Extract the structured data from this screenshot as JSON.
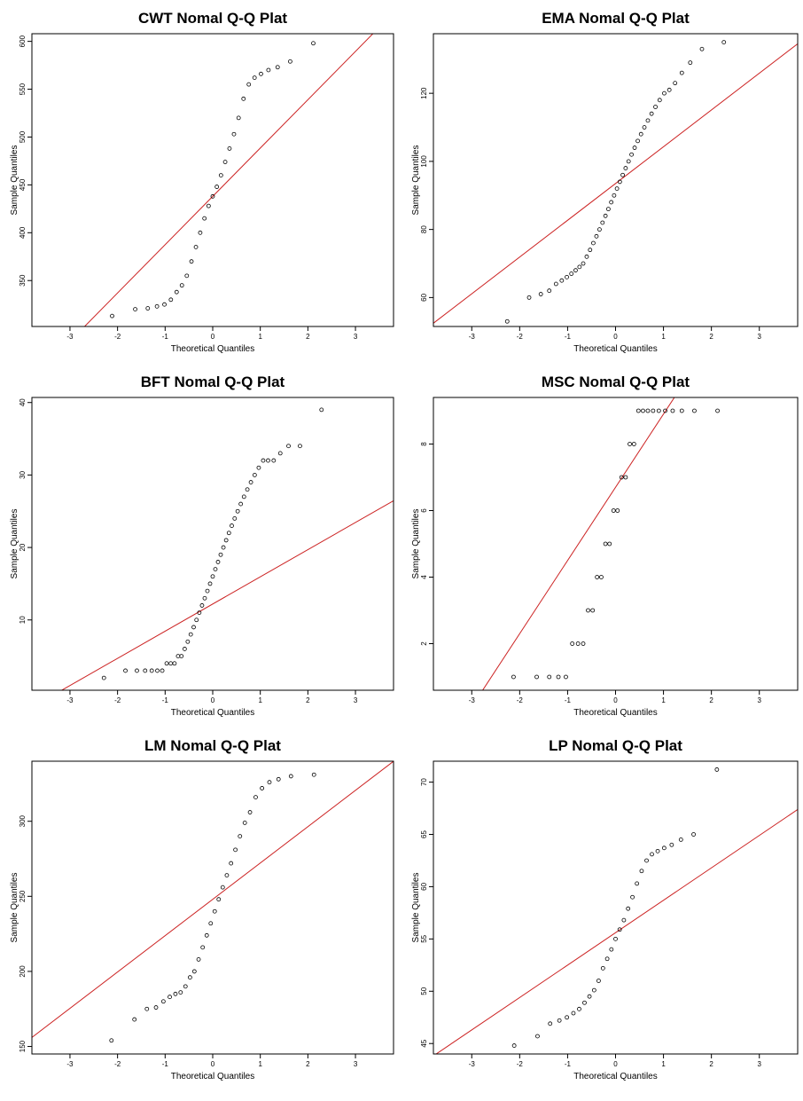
{
  "figure": {
    "axis_xlabel": "Theoretical Quantiles",
    "axis_ylabel": "Sample Quantiles",
    "point_color": "#000000",
    "line_color": "#cc2222",
    "frame_color": "#000000"
  },
  "chart_data": [
    {
      "type": "scatter",
      "title": "CWT Nomal Q-Q Plat",
      "xlabel": "Theoretical Quantiles",
      "ylabel": "Sample Quantiles",
      "xlim": [
        -3.8,
        3.8
      ],
      "ylim": [
        302,
        608
      ],
      "xticks": [
        -3,
        -2,
        -1,
        0,
        1,
        2,
        3
      ],
      "yticks": [
        350,
        400,
        450,
        500,
        550,
        600
      ],
      "grid": false,
      "reference_line": {
        "slope": 50.5,
        "intercept": 438
      },
      "samples": [
        313,
        320,
        321,
        323,
        325,
        330,
        338,
        345,
        355,
        370,
        385,
        400,
        415,
        428,
        438,
        448,
        460,
        474,
        488,
        503,
        520,
        540,
        555,
        562,
        566,
        570,
        573,
        579,
        598
      ]
    },
    {
      "type": "scatter",
      "title": "EMA Nomal Q-Q Plat",
      "xlabel": "Theoretical Quantiles",
      "ylabel": "Sample Quantiles",
      "xlim": [
        -3.8,
        3.8
      ],
      "ylim": [
        51.5,
        137.5
      ],
      "xticks": [
        -3,
        -2,
        -1,
        0,
        1,
        2,
        3
      ],
      "yticks": [
        60,
        80,
        100,
        120
      ],
      "grid": false,
      "reference_line": {
        "slope": 10.8,
        "intercept": 93.5
      },
      "samples": [
        53,
        60,
        61,
        62,
        64,
        65,
        66,
        67,
        68,
        69,
        70,
        72,
        74,
        76,
        78,
        80,
        82,
        84,
        86,
        88,
        90,
        92,
        94,
        96,
        98,
        100,
        102,
        104,
        106,
        108,
        110,
        112,
        114,
        116,
        118,
        120,
        121,
        123,
        126,
        129,
        133,
        135
      ]
    },
    {
      "type": "scatter",
      "title": "BFT Nomal Q-Q Plat",
      "xlabel": "Theoretical Quantiles",
      "ylabel": "Sample Quantiles",
      "xlim": [
        -3.8,
        3.8
      ],
      "ylim": [
        0.3,
        40.7
      ],
      "xticks": [
        -3,
        -2,
        -1,
        0,
        1,
        2,
        3
      ],
      "yticks": [
        10,
        20,
        30,
        40
      ],
      "grid": false,
      "reference_line": {
        "slope": 3.75,
        "intercept": 12.2
      },
      "samples": [
        2,
        3,
        3,
        3,
        3,
        3,
        3,
        4,
        4,
        4,
        5,
        5,
        6,
        7,
        8,
        9,
        10,
        11,
        12,
        13,
        14,
        15,
        16,
        17,
        18,
        19,
        20,
        21,
        22,
        23,
        24,
        25,
        26,
        27,
        28,
        29,
        30,
        31,
        32,
        32,
        32,
        33,
        34,
        34,
        39
      ]
    },
    {
      "type": "scatter",
      "title": "MSC Nomal Q-Q Plat",
      "xlabel": "Theoretical Quantiles",
      "ylabel": "Sample Quantiles",
      "xlim": [
        -3.8,
        3.8
      ],
      "ylim": [
        0.6,
        9.4
      ],
      "xticks": [
        -3,
        -2,
        -1,
        0,
        1,
        2,
        3
      ],
      "yticks": [
        2,
        4,
        6,
        8
      ],
      "grid": false,
      "reference_line": {
        "slope": 2.2,
        "intercept": 6.7
      },
      "samples": [
        1,
        1,
        1,
        1,
        1,
        2,
        2,
        2,
        3,
        3,
        4,
        4,
        5,
        5,
        6,
        6,
        7,
        7,
        8,
        8,
        9,
        9,
        9,
        9,
        9,
        9,
        9,
        9,
        9,
        9
      ]
    },
    {
      "type": "scatter",
      "title": "LM Nomal Q-Q Plat",
      "xlabel": "Theoretical Quantiles",
      "ylabel": "Sample Quantiles",
      "xlim": [
        -3.8,
        3.8
      ],
      "ylim": [
        145,
        340
      ],
      "xticks": [
        -3,
        -2,
        -1,
        0,
        1,
        2,
        3
      ],
      "yticks": [
        150,
        200,
        250,
        300
      ],
      "grid": false,
      "reference_line": {
        "slope": 24.2,
        "intercept": 248
      },
      "samples": [
        154,
        168,
        175,
        176,
        180,
        183,
        185,
        186,
        190,
        196,
        200,
        208,
        216,
        224,
        232,
        240,
        248,
        256,
        264,
        272,
        281,
        290,
        299,
        306,
        316,
        322,
        326,
        328,
        330,
        331
      ]
    },
    {
      "type": "scatter",
      "title": "LP Nomal Q-Q Plat",
      "xlabel": "Theoretical Quantiles",
      "ylabel": "Sample Quantiles",
      "xlim": [
        -3.8,
        3.8
      ],
      "ylim": [
        44,
        72
      ],
      "xticks": [
        -3,
        -2,
        -1,
        0,
        1,
        2,
        3
      ],
      "yticks": [
        45,
        50,
        55,
        60,
        65,
        70
      ],
      "grid": false,
      "reference_line": {
        "slope": 3.1,
        "intercept": 55.6
      },
      "samples": [
        44.8,
        45.7,
        46.9,
        47.2,
        47.5,
        47.9,
        48.3,
        48.9,
        49.5,
        50.1,
        51.0,
        52.2,
        53.1,
        54.0,
        55.0,
        55.9,
        56.8,
        57.9,
        59.0,
        60.3,
        61.5,
        62.5,
        63.1,
        63.4,
        63.7,
        64.0,
        64.5,
        65.0,
        71.2
      ]
    }
  ]
}
